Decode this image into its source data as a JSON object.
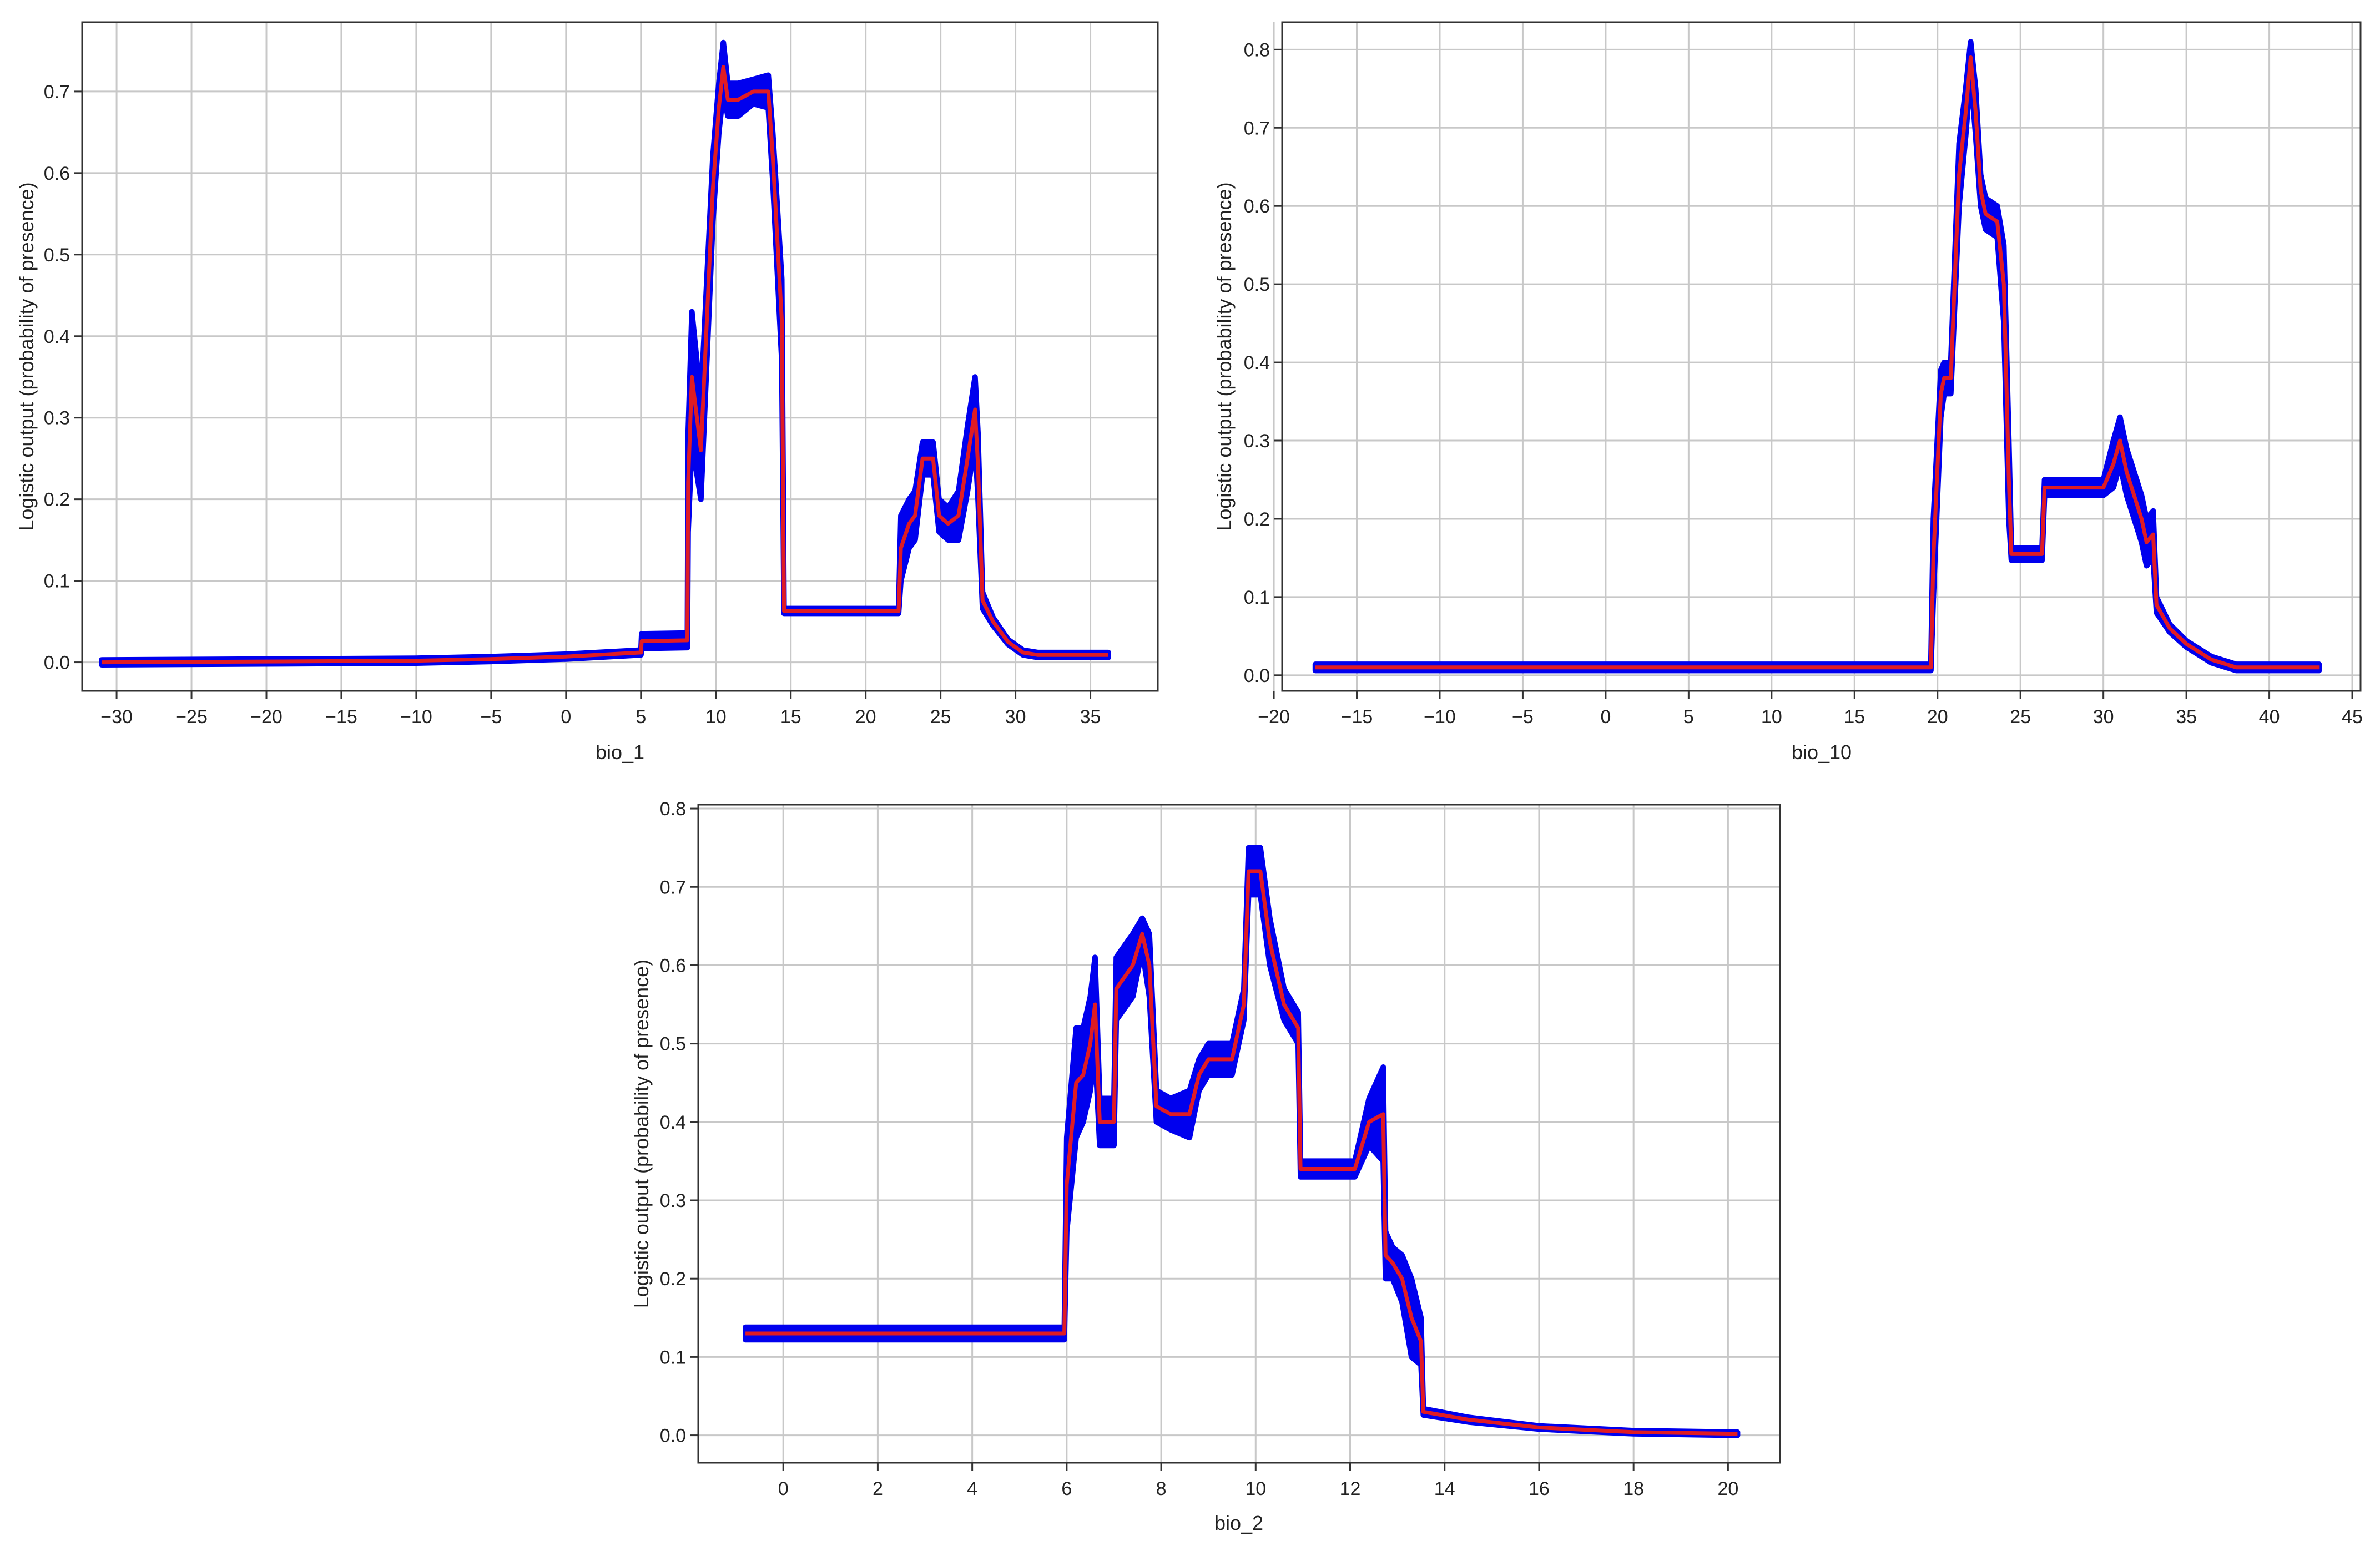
{
  "chart_data": [
    {
      "type": "line",
      "xlabel": "bio_1",
      "ylabel": "Logistic output (probability of presence)",
      "xlim": [
        -32.3,
        39.5
      ],
      "ylim": [
        -0.035,
        0.785
      ],
      "xticks": [
        -30,
        -25,
        -20,
        -15,
        -10,
        -5,
        0,
        5,
        10,
        15,
        20,
        25,
        30,
        35
      ],
      "yticks": [
        0.0,
        0.1,
        0.2,
        0.3,
        0.4,
        0.5,
        0.6,
        0.7
      ],
      "grid": true,
      "series": [
        {
          "color": "#e01b24",
          "band_color": "#0000ee",
          "x": [
            -31.0,
            -20.0,
            -10.0,
            -5.0,
            0.0,
            5.0,
            5.05,
            8.1,
            8.15,
            8.4,
            9.0,
            9.8,
            10.2,
            10.5,
            10.8,
            11.5,
            12.5,
            13.5,
            13.8,
            14.4,
            14.55,
            18.0,
            22.2,
            22.35,
            22.9,
            23.3,
            23.8,
            24.5,
            24.9,
            25.5,
            26.2,
            26.8,
            27.3,
            27.5,
            27.8,
            28.5,
            29.5,
            30.5,
            31.5,
            36.2
          ],
          "y": [
            0.0,
            0.001,
            0.002,
            0.004,
            0.007,
            0.012,
            0.026,
            0.027,
            0.22,
            0.35,
            0.26,
            0.58,
            0.68,
            0.73,
            0.69,
            0.69,
            0.7,
            0.7,
            0.62,
            0.42,
            0.063,
            0.063,
            0.063,
            0.14,
            0.17,
            0.18,
            0.25,
            0.25,
            0.18,
            0.17,
            0.18,
            0.25,
            0.31,
            0.24,
            0.076,
            0.05,
            0.025,
            0.012,
            0.009,
            0.009
          ],
          "band": [
            0.003,
            0.003,
            0.003,
            0.003,
            0.003,
            0.003,
            0.009,
            0.009,
            0.06,
            0.08,
            0.06,
            0.04,
            0.03,
            0.03,
            0.02,
            0.02,
            0.015,
            0.02,
            0.03,
            0.05,
            0.003,
            0.003,
            0.003,
            0.04,
            0.03,
            0.03,
            0.02,
            0.02,
            0.02,
            0.02,
            0.03,
            0.04,
            0.04,
            0.04,
            0.01,
            0.005,
            0.003,
            0.003,
            0.003,
            0.003
          ]
        }
      ]
    },
    {
      "type": "line",
      "xlabel": "bio_10",
      "ylabel": "Logistic output (probability of presence)",
      "xlim": [
        -19.5,
        45.5
      ],
      "ylim": [
        -0.02,
        0.835
      ],
      "xticks": [
        -20,
        -15,
        -10,
        -5,
        0,
        5,
        10,
        15,
        20,
        25,
        30,
        35,
        40,
        45
      ],
      "yticks": [
        0.0,
        0.1,
        0.2,
        0.3,
        0.4,
        0.5,
        0.6,
        0.7,
        0.8
      ],
      "grid": true,
      "series": [
        {
          "color": "#e01b24",
          "band_color": "#0000ee",
          "x": [
            -17.5,
            0.0,
            19.6,
            19.75,
            20.2,
            20.4,
            20.8,
            21.3,
            21.7,
            22.0,
            22.3,
            22.6,
            22.9,
            23.6,
            24.0,
            24.3,
            24.45,
            26.3,
            26.45,
            28.5,
            30.0,
            30.6,
            31.0,
            31.4,
            32.0,
            32.3,
            32.6,
            33.0,
            33.2,
            34.0,
            35.0,
            36.5,
            38.0,
            43.0
          ],
          "y": [
            0.01,
            0.01,
            0.01,
            0.15,
            0.36,
            0.38,
            0.38,
            0.64,
            0.72,
            0.79,
            0.72,
            0.62,
            0.59,
            0.58,
            0.5,
            0.25,
            0.155,
            0.155,
            0.24,
            0.24,
            0.24,
            0.27,
            0.3,
            0.26,
            0.22,
            0.2,
            0.17,
            0.18,
            0.09,
            0.06,
            0.04,
            0.02,
            0.01,
            0.01
          ],
          "band": [
            0.004,
            0.004,
            0.004,
            0.05,
            0.03,
            0.02,
            0.02,
            0.04,
            0.03,
            0.02,
            0.03,
            0.02,
            0.02,
            0.02,
            0.05,
            0.05,
            0.008,
            0.008,
            0.01,
            0.01,
            0.01,
            0.03,
            0.03,
            0.03,
            0.03,
            0.03,
            0.03,
            0.03,
            0.01,
            0.005,
            0.004,
            0.004,
            0.004,
            0.004
          ]
        }
      ]
    },
    {
      "type": "line",
      "xlabel": "bio_2",
      "ylabel": "Logistic output (probability of presence)",
      "xlim": [
        -1.8,
        21.1
      ],
      "ylim": [
        -0.035,
        0.805
      ],
      "xticks": [
        0,
        2,
        4,
        6,
        8,
        10,
        12,
        14,
        16,
        18,
        20
      ],
      "yticks": [
        0.0,
        0.1,
        0.2,
        0.3,
        0.4,
        0.5,
        0.6,
        0.7,
        0.8
      ],
      "grid": true,
      "series": [
        {
          "color": "#e01b24",
          "band_color": "#0000ee",
          "x": [
            -0.8,
            3.0,
            5.95,
            6.0,
            6.2,
            6.35,
            6.5,
            6.6,
            6.7,
            7.0,
            7.05,
            7.4,
            7.6,
            7.75,
            7.9,
            8.2,
            8.6,
            8.8,
            9.0,
            9.5,
            9.75,
            9.85,
            10.1,
            10.3,
            10.6,
            10.9,
            10.95,
            11.5,
            12.1,
            12.4,
            12.7,
            12.75,
            12.9,
            13.1,
            13.3,
            13.5,
            13.55,
            14.5,
            16.0,
            18.0,
            20.2
          ],
          "y": [
            0.13,
            0.13,
            0.13,
            0.32,
            0.45,
            0.46,
            0.5,
            0.55,
            0.4,
            0.4,
            0.57,
            0.6,
            0.64,
            0.6,
            0.42,
            0.41,
            0.41,
            0.46,
            0.48,
            0.48,
            0.55,
            0.72,
            0.72,
            0.63,
            0.55,
            0.52,
            0.34,
            0.34,
            0.34,
            0.4,
            0.41,
            0.23,
            0.22,
            0.2,
            0.15,
            0.12,
            0.03,
            0.02,
            0.01,
            0.004,
            0.002
          ],
          "band": [
            0.008,
            0.008,
            0.008,
            0.06,
            0.07,
            0.06,
            0.06,
            0.06,
            0.03,
            0.03,
            0.04,
            0.04,
            0.02,
            0.04,
            0.02,
            0.02,
            0.03,
            0.02,
            0.02,
            0.02,
            0.02,
            0.03,
            0.03,
            0.03,
            0.02,
            0.02,
            0.01,
            0.01,
            0.01,
            0.03,
            0.06,
            0.03,
            0.02,
            0.03,
            0.05,
            0.03,
            0.004,
            0.003,
            0.002,
            0.002,
            0.002
          ]
        }
      ]
    }
  ]
}
